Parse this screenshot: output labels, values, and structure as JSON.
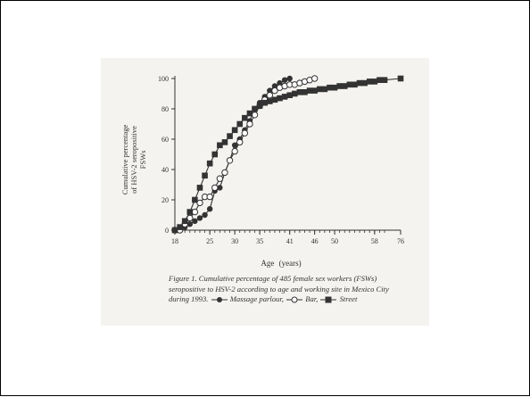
{
  "chart_data": {
    "type": "line",
    "title": "",
    "xlabel": "Age (years)",
    "ylabel": "Cumulative percentage of HSV-2 seropositive FSWs",
    "ylim": [
      0,
      100
    ],
    "yticks": [
      0,
      20,
      40,
      60,
      80,
      100
    ],
    "x_tick_labels": [
      "18",
      "25",
      "30",
      "35",
      "41",
      "46",
      "50",
      "58",
      "76"
    ],
    "x_tick_positions": [
      18,
      25,
      30,
      35,
      41,
      46,
      50,
      58,
      76
    ],
    "x_ticks_minor_step": 1,
    "grid": false,
    "legend_position": "caption",
    "series": [
      {
        "name": "Massage parlour",
        "marker": "filled-circle",
        "x": [
          18,
          19,
          20,
          21,
          22,
          23,
          24,
          25,
          26,
          27,
          28,
          29,
          30,
          31,
          32,
          33,
          34,
          35,
          36,
          37,
          38,
          39,
          40,
          41
        ],
        "values": [
          0,
          0,
          2,
          4,
          6,
          8,
          10,
          14,
          26,
          28,
          38,
          46,
          56,
          60,
          66,
          72,
          80,
          84,
          88,
          92,
          95,
          97,
          99,
          100
        ]
      },
      {
        "name": "Bar",
        "marker": "open-circle",
        "x": [
          18,
          19,
          20,
          21,
          22,
          23,
          24,
          25,
          26,
          27,
          28,
          29,
          30,
          31,
          32,
          33,
          34,
          35,
          36,
          37,
          38,
          39,
          40,
          41,
          42,
          43,
          44,
          45,
          46
        ],
        "values": [
          0,
          0,
          4,
          8,
          12,
          18,
          22,
          22,
          28,
          34,
          38,
          46,
          52,
          58,
          64,
          70,
          76,
          82,
          86,
          89,
          92,
          94,
          95,
          96,
          96,
          97,
          98,
          99,
          100
        ]
      },
      {
        "name": "Street",
        "marker": "filled-square",
        "x": [
          18,
          19,
          20,
          21,
          22,
          23,
          24,
          25,
          26,
          27,
          28,
          29,
          30,
          31,
          32,
          33,
          34,
          35,
          36,
          37,
          38,
          39,
          40,
          41,
          42,
          43,
          44,
          45,
          46,
          47,
          48,
          49,
          50,
          51,
          52,
          53,
          54,
          55,
          56,
          57,
          58,
          59,
          60,
          76
        ],
        "values": [
          0,
          2,
          6,
          12,
          20,
          28,
          36,
          44,
          50,
          56,
          58,
          62,
          66,
          70,
          74,
          77,
          80,
          82,
          84,
          85,
          86,
          87,
          88,
          89,
          90,
          91,
          91,
          92,
          92,
          93,
          93,
          94,
          94,
          95,
          95,
          96,
          96,
          97,
          97,
          98,
          98,
          99,
          99,
          100
        ]
      }
    ]
  },
  "caption": {
    "text": "Figure 1. Cumulative percentage of 485 female sex workers (FSWs) seropositive to HSV-2 according to age and working site in Mexico City during 1993.",
    "legend_labels": [
      "Massage parlour,",
      "Bar,",
      "Street"
    ]
  }
}
